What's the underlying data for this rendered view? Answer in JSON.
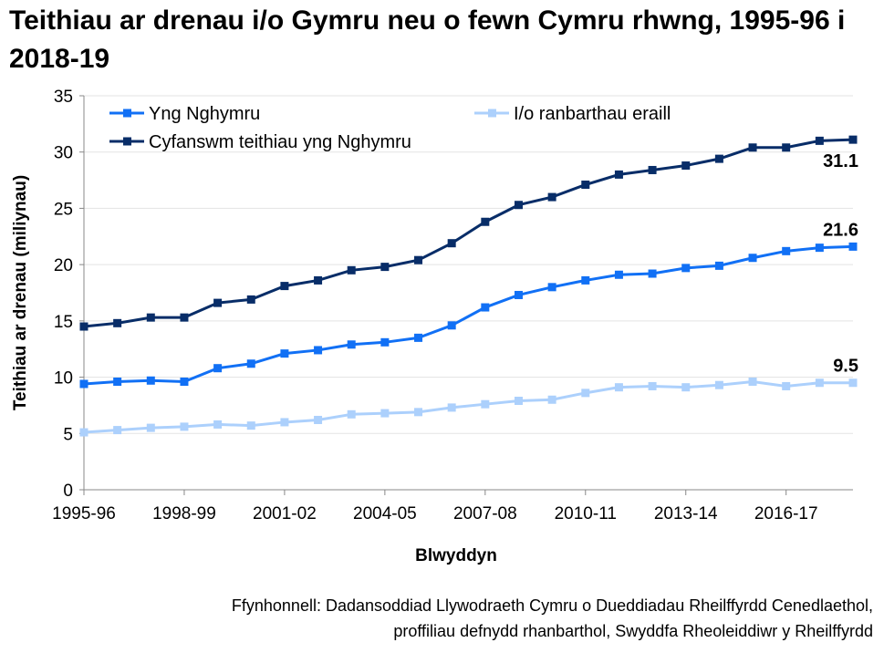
{
  "chart_data": {
    "type": "line",
    "title": "Teithiau ar drenau i/o Gymru neu o fewn Cymru rhwng, 1995-96 i 2018-19",
    "xlabel": "Blwyddyn",
    "ylabel": "Teithiau ar drenau (miliynau)",
    "ylim": [
      0,
      35
    ],
    "yticks": [
      "0",
      "5",
      "10",
      "15",
      "20",
      "25",
      "30",
      "35"
    ],
    "ytick_values": [
      0,
      5,
      10,
      15,
      20,
      25,
      30,
      35
    ],
    "grid": "horizontal",
    "legend": "top",
    "categories": [
      "1995-96",
      "1996-97",
      "1997-98",
      "1998-99",
      "1999-00",
      "2000-01",
      "2001-02",
      "2002-03",
      "2003-04",
      "2004-05",
      "2005-06",
      "2006-07",
      "2007-08",
      "2008-09",
      "2009-10",
      "2010-11",
      "2011-12",
      "2012-13",
      "2013-14",
      "2014-15",
      "2015-16",
      "2016-17",
      "2017-18",
      "2018-19"
    ],
    "xtick_labels": [
      "1995-96",
      "1998-99",
      "2001-02",
      "2004-05",
      "2007-08",
      "2010-11",
      "2013-14",
      "2016-17"
    ],
    "xtick_indices": [
      0,
      3,
      6,
      9,
      12,
      15,
      18,
      21
    ],
    "series": [
      {
        "name": "Yng Nghymru",
        "color": "#1170f5",
        "end_label": "21.6",
        "values": [
          9.4,
          9.6,
          9.7,
          9.6,
          10.8,
          11.2,
          12.1,
          12.4,
          12.9,
          13.1,
          13.5,
          14.6,
          16.2,
          17.3,
          18.0,
          18.6,
          19.1,
          19.2,
          19.7,
          19.9,
          20.6,
          21.2,
          21.5,
          21.6
        ]
      },
      {
        "name": "I/o ranbarthau eraill",
        "color": "#acd0fc",
        "end_label": "9.5",
        "values": [
          5.1,
          5.3,
          5.5,
          5.6,
          5.8,
          5.7,
          6.0,
          6.2,
          6.7,
          6.8,
          6.9,
          7.3,
          7.6,
          7.9,
          8.0,
          8.6,
          9.1,
          9.2,
          9.1,
          9.3,
          9.6,
          9.2,
          9.5,
          9.5
        ]
      },
      {
        "name": "Cyfanswm teithiau yng Nghymru",
        "color": "#082d68",
        "end_label": "31.1",
        "values": [
          14.5,
          14.8,
          15.3,
          15.3,
          16.6,
          16.9,
          18.1,
          18.6,
          19.5,
          19.8,
          20.4,
          21.9,
          23.8,
          25.3,
          26.0,
          27.1,
          28.0,
          28.4,
          28.8,
          29.4,
          30.4,
          30.4,
          31.0,
          31.1
        ]
      }
    ]
  },
  "source": {
    "line1": "Ffynhonnell: Dadansoddiad Llywodraeth Cymru o Dueddiadau Rheilffyrdd Cenedlaethol,",
    "line2": "proffiliau defnydd rhanbarthol, Swyddfa Rheoleiddiwr y Rheilffyrdd"
  }
}
